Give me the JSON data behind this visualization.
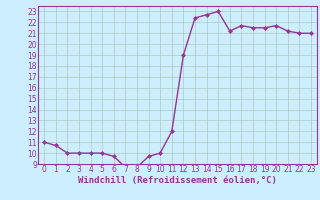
{
  "x": [
    0,
    1,
    2,
    3,
    4,
    5,
    6,
    7,
    8,
    9,
    10,
    11,
    12,
    13,
    14,
    15,
    16,
    17,
    18,
    19,
    20,
    21,
    22,
    23
  ],
  "y": [
    11.0,
    10.7,
    10.0,
    10.0,
    10.0,
    10.0,
    9.7,
    8.7,
    8.7,
    9.7,
    10.0,
    12.0,
    19.0,
    22.4,
    22.7,
    23.0,
    21.2,
    21.7,
    21.5,
    21.5,
    21.7,
    21.2,
    21.0,
    21.0
  ],
  "line_color": "#993399",
  "marker": "D",
  "markersize": 2.0,
  "linewidth": 1.0,
  "bg_color": "#cceeff",
  "grid_color": "#aaccbb",
  "xlabel": "Windchill (Refroidissement éolien,°C)",
  "xlabel_color": "#993399",
  "xlabel_fontsize": 6.5,
  "ylim": [
    9,
    23.5
  ],
  "xlim": [
    -0.5,
    23.5
  ],
  "yticks": [
    9,
    10,
    11,
    12,
    13,
    14,
    15,
    16,
    17,
    18,
    19,
    20,
    21,
    22,
    23
  ],
  "xticks": [
    0,
    1,
    2,
    3,
    4,
    5,
    6,
    7,
    8,
    9,
    10,
    11,
    12,
    13,
    14,
    15,
    16,
    17,
    18,
    19,
    20,
    21,
    22,
    23
  ],
  "tick_fontsize": 5.5,
  "tick_color": "#993399",
  "spine_color": "#993399"
}
